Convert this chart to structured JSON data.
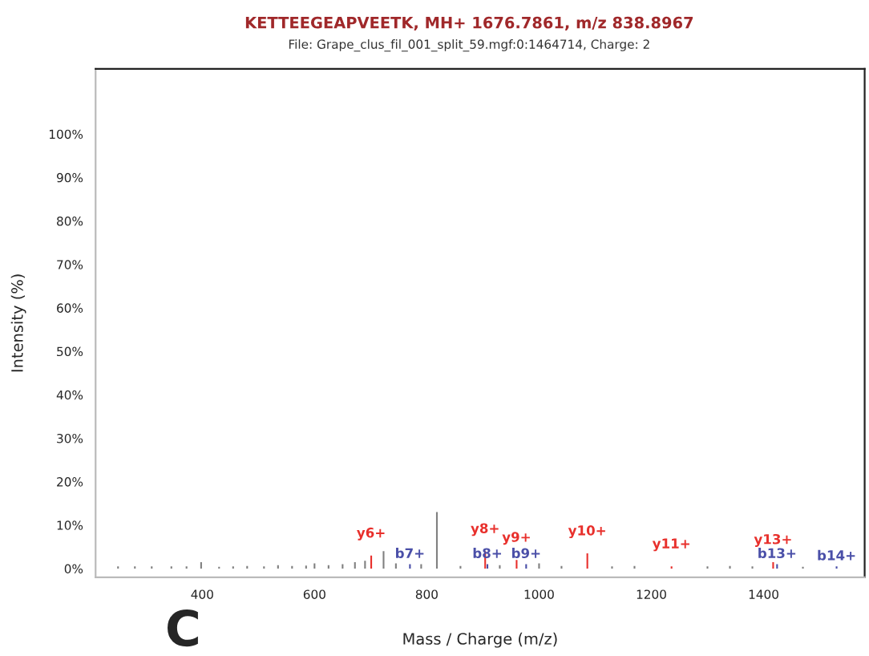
{
  "chart_data": {
    "type": "bar",
    "title": "KETTEEGEAPVEETK, MH+ 1676.7861, m/z 838.8967",
    "subtitle": "File: Grape_clus_fil_001_split_59.mgf:0:1464714, Charge: 2",
    "xlabel": "Mass / Charge (m/z)",
    "ylabel": "Intensity (%)",
    "series": [
      {
        "color": "#808080",
        "x": [
          250,
          280,
          310,
          345,
          372,
          398,
          430,
          455,
          480,
          510,
          535,
          560,
          585,
          600,
          625,
          650,
          672,
          690,
          723,
          745,
          790,
          818,
          860,
          930,
          1000,
          1040,
          1130,
          1170,
          1300,
          1340,
          1380,
          1470
        ],
        "values": [
          0.5,
          0.5,
          0.5,
          0.5,
          0.5,
          1.5,
          0.4,
          0.5,
          0.6,
          0.5,
          0.8,
          0.6,
          0.7,
          1.2,
          0.8,
          1.0,
          1.5,
          1.8,
          4,
          1.2,
          1.0,
          13,
          0.6,
          0.8,
          1.2,
          0.6,
          0.5,
          0.6,
          0.5,
          0.6,
          0.5,
          0.4
        ]
      },
      {
        "color": "#e8302c",
        "x": [
          701,
          904,
          960,
          1086,
          1236,
          1417
        ],
        "values": [
          3,
          4,
          2,
          3.5,
          0.5,
          1.5
        ],
        "value_labels": [
          "y6+",
          "y8+",
          "y9+",
          "y10+",
          "y11+",
          "y13+"
        ]
      },
      {
        "color": "#4a4fa8",
        "x": [
          770,
          908,
          977,
          1424,
          1530
        ],
        "values": [
          1,
          1,
          1,
          1,
          0.5
        ],
        "value_labels": [
          "b7+",
          "b8+",
          "b9+",
          "b13+",
          "b14+"
        ]
      }
    ],
    "xlim": [
      210,
      1580
    ],
    "ylim": [
      -2,
      115
    ],
    "xticks": [
      400,
      600,
      800,
      1000,
      1200,
      1400
    ],
    "yticks": [
      {
        "value": 0,
        "label": "0%"
      },
      {
        "value": 10,
        "label": "10%"
      },
      {
        "value": 20,
        "label": "20%"
      },
      {
        "value": 30,
        "label": "30%"
      },
      {
        "value": 40,
        "label": "40%"
      },
      {
        "value": 50,
        "label": "50%"
      },
      {
        "value": 60,
        "label": "60%"
      },
      {
        "value": 70,
        "label": "70%"
      },
      {
        "value": 80,
        "label": "80%"
      },
      {
        "value": 90,
        "label": "90%"
      },
      {
        "value": 100,
        "label": "100%"
      }
    ],
    "grid": false,
    "annotations": [
      "C"
    ]
  }
}
